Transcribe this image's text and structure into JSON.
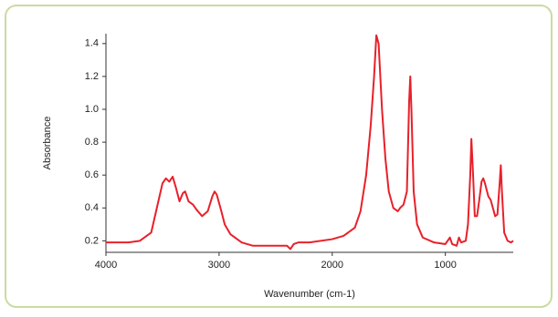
{
  "chart_data": {
    "type": "line",
    "x_label": "Wavenumber (cm-1)",
    "y_label": "Absorbance",
    "x": [
      4000,
      3800,
      3700,
      3600,
      3550,
      3500,
      3470,
      3440,
      3410,
      3380,
      3350,
      3320,
      3300,
      3270,
      3230,
      3200,
      3150,
      3100,
      3060,
      3040,
      3020,
      2980,
      2950,
      2900,
      2800,
      2700,
      2500,
      2400,
      2370,
      2340,
      2300,
      2200,
      2000,
      1900,
      1800,
      1750,
      1700,
      1660,
      1630,
      1610,
      1590,
      1560,
      1530,
      1500,
      1460,
      1420,
      1400,
      1370,
      1340,
      1320,
      1310,
      1300,
      1280,
      1250,
      1200,
      1100,
      1000,
      960,
      940,
      900,
      880,
      860,
      820,
      800,
      780,
      770,
      755,
      740,
      720,
      700,
      680,
      665,
      650,
      620,
      600,
      580,
      560,
      540,
      520,
      510,
      500,
      480,
      450,
      420,
      400
    ],
    "series": [
      {
        "name": "Absorbance",
        "color": "#e8202a",
        "values": [
          0.19,
          0.19,
          0.2,
          0.25,
          0.4,
          0.55,
          0.58,
          0.56,
          0.59,
          0.52,
          0.44,
          0.49,
          0.5,
          0.44,
          0.42,
          0.39,
          0.35,
          0.38,
          0.47,
          0.5,
          0.48,
          0.38,
          0.3,
          0.24,
          0.19,
          0.17,
          0.17,
          0.17,
          0.15,
          0.18,
          0.19,
          0.19,
          0.21,
          0.23,
          0.28,
          0.38,
          0.6,
          0.9,
          1.2,
          1.45,
          1.4,
          1.0,
          0.7,
          0.5,
          0.4,
          0.38,
          0.4,
          0.42,
          0.5,
          1.05,
          1.2,
          1.0,
          0.5,
          0.3,
          0.22,
          0.19,
          0.18,
          0.22,
          0.18,
          0.17,
          0.22,
          0.19,
          0.2,
          0.3,
          0.6,
          0.82,
          0.6,
          0.35,
          0.35,
          0.45,
          0.56,
          0.58,
          0.55,
          0.47,
          0.45,
          0.4,
          0.35,
          0.36,
          0.55,
          0.66,
          0.5,
          0.25,
          0.2,
          0.19,
          0.2
        ]
      }
    ],
    "xlim": [
      4000,
      400
    ],
    "xticks": [
      4000,
      3000,
      2000,
      1000
    ],
    "ylim": [
      0.13,
      1.46
    ],
    "yticks": [
      0.2,
      0.4,
      0.6,
      0.8,
      {
        "value": 1,
        "label": "1.0"
      },
      1.2,
      1.4
    ]
  }
}
